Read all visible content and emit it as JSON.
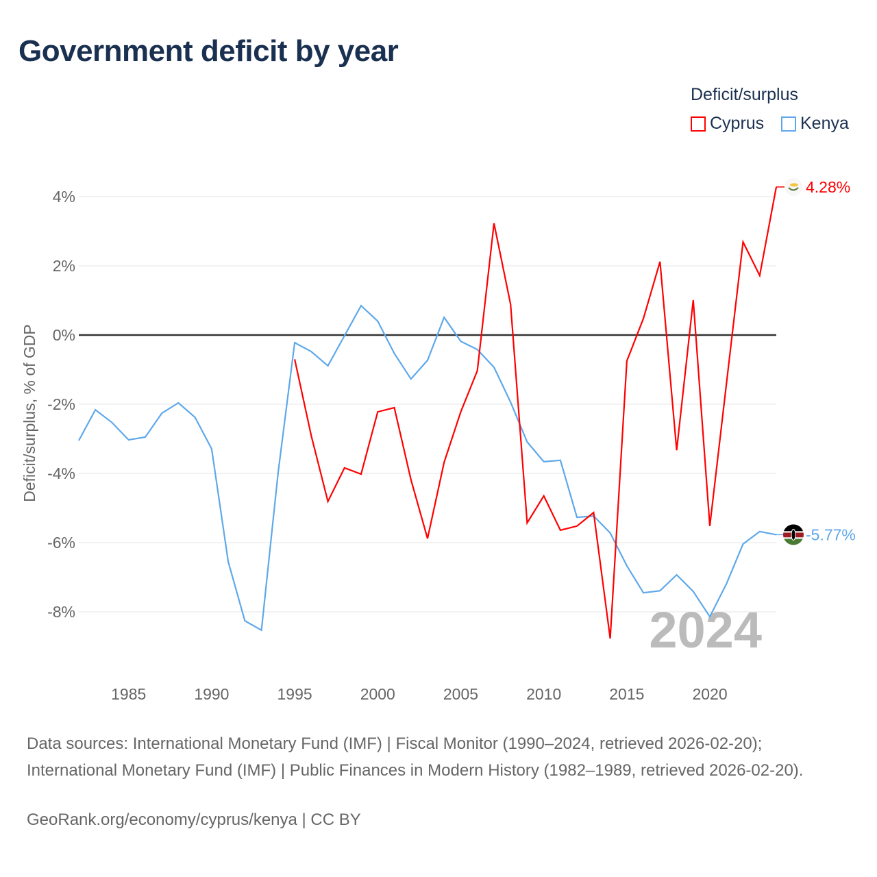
{
  "title": "Government deficit by year",
  "legend": {
    "title": "Deficit/surplus",
    "items": [
      {
        "label": "Cyprus",
        "color": "#ff0000"
      },
      {
        "label": "Kenya",
        "color": "#5ea8ea"
      }
    ]
  },
  "chart_data": {
    "type": "line",
    "title": "Government deficit by year",
    "ylabel": "Deficit/surplus, % of GDP",
    "xlabel": "",
    "xlim": [
      1982,
      2024
    ],
    "ylim": [
      -10,
      4.5
    ],
    "yticks": [
      4,
      2,
      0,
      -2,
      -4,
      -6,
      -8
    ],
    "ytick_labels": [
      "4%",
      "2%",
      "0%",
      "-2%",
      "-4%",
      "-6%",
      "-8%"
    ],
    "xticks": [
      1985,
      1990,
      1995,
      2000,
      2005,
      2010,
      2015,
      2020
    ],
    "xtick_labels": [
      "1985",
      "1990",
      "1995",
      "2000",
      "2005",
      "2010",
      "2015",
      "2020"
    ],
    "grid": true,
    "year_watermark": "2024",
    "series": [
      {
        "name": "Cyprus",
        "color": "#ff0000",
        "end_label": "4.28%",
        "start_year": 1995,
        "values": [
          -0.7,
          -2.91,
          -4.81,
          -3.84,
          -4.02,
          -2.22,
          -2.1,
          -4.18,
          -5.88,
          -3.68,
          -2.22,
          -1.03,
          3.23,
          0.89,
          -5.43,
          -4.65,
          -5.64,
          -5.52,
          -5.13,
          -8.77,
          -0.75,
          0.48,
          2.12,
          -3.33,
          1.01,
          -5.52,
          -1.4,
          2.69,
          1.72,
          4.28
        ]
      },
      {
        "name": "Kenya",
        "color": "#5ea8ea",
        "end_label": "-5.77%",
        "start_year": 1982,
        "values": [
          -3.05,
          -2.16,
          -2.53,
          -3.03,
          -2.95,
          -2.26,
          -1.96,
          -2.38,
          -3.29,
          -6.55,
          -8.26,
          -8.53,
          -3.98,
          -0.22,
          -0.48,
          -0.89,
          -0.02,
          0.85,
          0.4,
          -0.53,
          -1.27,
          -0.73,
          0.51,
          -0.18,
          -0.42,
          -0.93,
          -1.94,
          -3.09,
          -3.66,
          -3.62,
          -5.27,
          -5.23,
          -5.72,
          -6.67,
          -7.45,
          -7.39,
          -6.93,
          -7.41,
          -8.14,
          -7.19,
          -6.04,
          -5.68,
          -5.77
        ]
      }
    ]
  },
  "footer": {
    "sources": "Data sources: International Monetary Fund (IMF) | Fiscal Monitor (1990–2024, retrieved 2026-02-20); International Monetary Fund (IMF) | Public Finances in Modern History (1982–1989, retrieved 2026-02-20).",
    "credit": "GeoRank.org/economy/cyprus/kenya | CC BY"
  }
}
